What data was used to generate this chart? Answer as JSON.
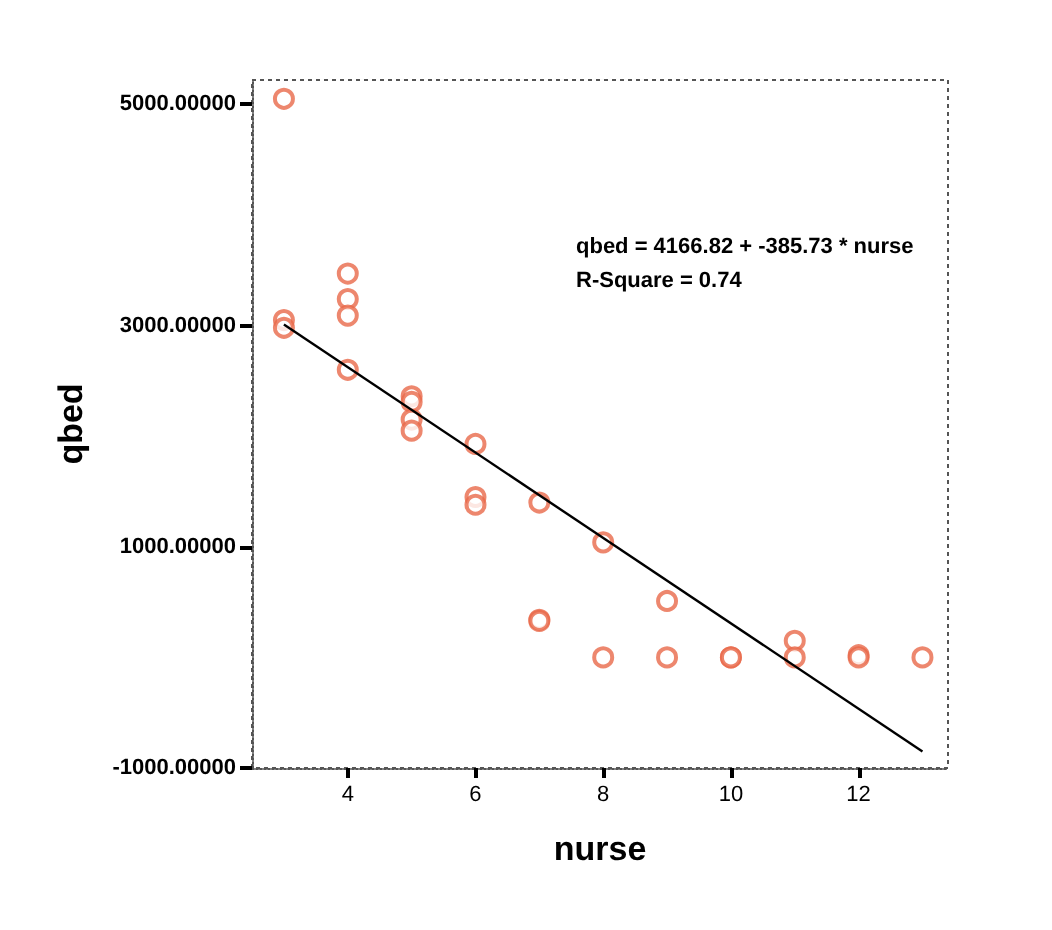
{
  "chart_data": {
    "type": "scatter",
    "xlabel": "nurse",
    "ylabel": "qbed",
    "annotations": [
      "qbed = 4166.82 + -385.73 * nurse",
      "R-Square = 0.74"
    ],
    "xlim": [
      2.5,
      13.4
    ],
    "ylim": [
      -1000,
      5220
    ],
    "xticks": [
      4,
      6,
      8,
      10,
      12
    ],
    "yticks": [
      {
        "value": -1000,
        "label": "-1000.00000"
      },
      {
        "value": 1000,
        "label": "1000.00000"
      },
      {
        "value": 3000,
        "label": "3000.00000"
      },
      {
        "value": 5000,
        "label": "5000.00000"
      }
    ],
    "grid": false,
    "marker": "circle",
    "series": [
      {
        "type": "scatter",
        "color": "#e8694a",
        "x": [
          3,
          3,
          3,
          4,
          4,
          4,
          4,
          5,
          5,
          5,
          5,
          6,
          6,
          6,
          7,
          7,
          7,
          8,
          8,
          9,
          9,
          10,
          10,
          11,
          11,
          12,
          12,
          13
        ],
        "values": [
          5050,
          3050,
          2980,
          3470,
          3240,
          3090,
          2600,
          2360,
          2310,
          2150,
          2050,
          1930,
          1450,
          1380,
          1400,
          340,
          330,
          1040,
          0,
          510,
          0,
          0,
          0,
          150,
          0,
          20,
          0,
          0
        ]
      },
      {
        "type": "line",
        "color": "#000000",
        "x": [
          3,
          13
        ],
        "values": [
          3010,
          -850
        ],
        "marker": "none"
      }
    ]
  }
}
